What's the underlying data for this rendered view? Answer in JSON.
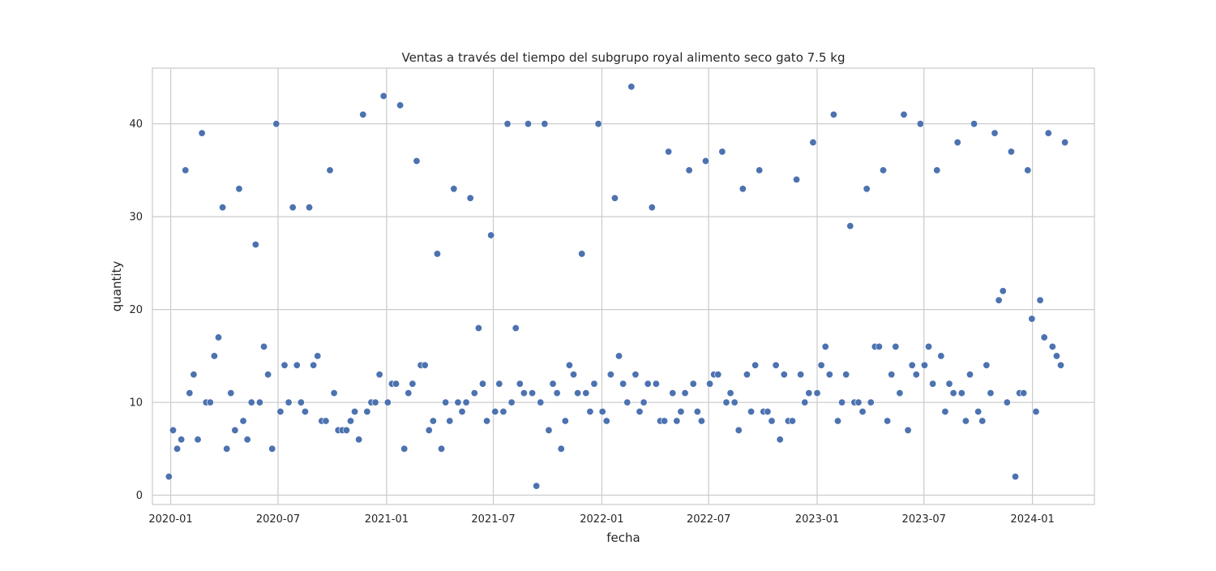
{
  "chart_data": {
    "type": "scatter",
    "title": "Ventas a través del tiempo del subgrupo royal alimento seco gato 7.5 kg",
    "xlabel": "fecha",
    "ylabel": "quantity",
    "xlim": [
      "2019-12-01",
      "2024-04-15"
    ],
    "ylim": [
      -1,
      46
    ],
    "x_ticks": [
      "2020-01",
      "2020-07",
      "2021-01",
      "2021-07",
      "2022-01",
      "2022-07",
      "2023-01",
      "2023-07",
      "2024-01"
    ],
    "y_ticks": [
      0,
      10,
      20,
      30,
      40
    ],
    "grid": true,
    "marker_color": "#4c72b0",
    "points": [
      [
        "2019-12-29",
        2
      ],
      [
        "2020-01-05",
        7
      ],
      [
        "2020-01-12",
        5
      ],
      [
        "2020-01-19",
        6
      ],
      [
        "2020-01-26",
        35
      ],
      [
        "2020-02-02",
        11
      ],
      [
        "2020-02-09",
        13
      ],
      [
        "2020-02-16",
        6
      ],
      [
        "2020-02-23",
        39
      ],
      [
        "2020-03-01",
        10
      ],
      [
        "2020-03-08",
        10
      ],
      [
        "2020-03-15",
        15
      ],
      [
        "2020-03-22",
        17
      ],
      [
        "2020-03-29",
        31
      ],
      [
        "2020-04-05",
        5
      ],
      [
        "2020-04-12",
        11
      ],
      [
        "2020-04-19",
        7
      ],
      [
        "2020-04-26",
        33
      ],
      [
        "2020-05-03",
        8
      ],
      [
        "2020-05-10",
        6
      ],
      [
        "2020-05-17",
        10
      ],
      [
        "2020-05-24",
        27
      ],
      [
        "2020-05-31",
        10
      ],
      [
        "2020-06-07",
        16
      ],
      [
        "2020-06-14",
        13
      ],
      [
        "2020-06-21",
        5
      ],
      [
        "2020-06-28",
        40
      ],
      [
        "2020-07-05",
        9
      ],
      [
        "2020-07-12",
        14
      ],
      [
        "2020-07-19",
        10
      ],
      [
        "2020-07-26",
        31
      ],
      [
        "2020-08-02",
        14
      ],
      [
        "2020-08-09",
        10
      ],
      [
        "2020-08-16",
        9
      ],
      [
        "2020-08-23",
        31
      ],
      [
        "2020-08-30",
        14
      ],
      [
        "2020-09-06",
        15
      ],
      [
        "2020-09-13",
        8
      ],
      [
        "2020-09-20",
        8
      ],
      [
        "2020-09-27",
        35
      ],
      [
        "2020-10-04",
        11
      ],
      [
        "2020-10-11",
        7
      ],
      [
        "2020-10-18",
        7
      ],
      [
        "2020-10-25",
        7
      ],
      [
        "2020-11-01",
        8
      ],
      [
        "2020-11-08",
        9
      ],
      [
        "2020-11-15",
        6
      ],
      [
        "2020-11-22",
        41
      ],
      [
        "2020-11-29",
        9
      ],
      [
        "2020-12-06",
        10
      ],
      [
        "2020-12-13",
        10
      ],
      [
        "2020-12-20",
        13
      ],
      [
        "2020-12-27",
        43
      ],
      [
        "2021-01-03",
        10
      ],
      [
        "2021-01-10",
        12
      ],
      [
        "2021-01-17",
        12
      ],
      [
        "2021-01-24",
        42
      ],
      [
        "2021-01-31",
        5
      ],
      [
        "2021-02-07",
        11
      ],
      [
        "2021-02-14",
        12
      ],
      [
        "2021-02-21",
        36
      ],
      [
        "2021-02-28",
        14
      ],
      [
        "2021-03-07",
        14
      ],
      [
        "2021-03-14",
        7
      ],
      [
        "2021-03-21",
        8
      ],
      [
        "2021-03-28",
        26
      ],
      [
        "2021-04-04",
        5
      ],
      [
        "2021-04-11",
        10
      ],
      [
        "2021-04-18",
        8
      ],
      [
        "2021-04-25",
        33
      ],
      [
        "2021-05-02",
        10
      ],
      [
        "2021-05-09",
        9
      ],
      [
        "2021-05-16",
        10
      ],
      [
        "2021-05-23",
        32
      ],
      [
        "2021-05-30",
        11
      ],
      [
        "2021-06-06",
        18
      ],
      [
        "2021-06-13",
        12
      ],
      [
        "2021-06-20",
        8
      ],
      [
        "2021-06-27",
        28
      ],
      [
        "2021-07-04",
        9
      ],
      [
        "2021-07-11",
        12
      ],
      [
        "2021-07-18",
        9
      ],
      [
        "2021-07-25",
        40
      ],
      [
        "2021-08-01",
        10
      ],
      [
        "2021-08-08",
        18
      ],
      [
        "2021-08-15",
        12
      ],
      [
        "2021-08-22",
        11
      ],
      [
        "2021-08-29",
        40
      ],
      [
        "2021-09-05",
        11
      ],
      [
        "2021-09-12",
        1
      ],
      [
        "2021-09-19",
        10
      ],
      [
        "2021-09-26",
        40
      ],
      [
        "2021-10-03",
        7
      ],
      [
        "2021-10-10",
        12
      ],
      [
        "2021-10-17",
        11
      ],
      [
        "2021-10-24",
        5
      ],
      [
        "2021-10-31",
        8
      ],
      [
        "2021-11-07",
        14
      ],
      [
        "2021-11-14",
        13
      ],
      [
        "2021-11-21",
        11
      ],
      [
        "2021-11-28",
        26
      ],
      [
        "2021-12-05",
        11
      ],
      [
        "2021-12-12",
        9
      ],
      [
        "2021-12-19",
        12
      ],
      [
        "2021-12-26",
        40
      ],
      [
        "2022-01-02",
        9
      ],
      [
        "2022-01-09",
        8
      ],
      [
        "2022-01-16",
        13
      ],
      [
        "2022-01-23",
        32
      ],
      [
        "2022-01-30",
        15
      ],
      [
        "2022-02-06",
        12
      ],
      [
        "2022-02-13",
        10
      ],
      [
        "2022-02-20",
        44
      ],
      [
        "2022-02-27",
        13
      ],
      [
        "2022-03-06",
        9
      ],
      [
        "2022-03-13",
        10
      ],
      [
        "2022-03-20",
        12
      ],
      [
        "2022-03-27",
        31
      ],
      [
        "2022-04-03",
        12
      ],
      [
        "2022-04-10",
        8
      ],
      [
        "2022-04-17",
        8
      ],
      [
        "2022-04-24",
        37
      ],
      [
        "2022-05-01",
        11
      ],
      [
        "2022-05-08",
        8
      ],
      [
        "2022-05-15",
        9
      ],
      [
        "2022-05-22",
        11
      ],
      [
        "2022-05-29",
        35
      ],
      [
        "2022-06-05",
        12
      ],
      [
        "2022-06-12",
        9
      ],
      [
        "2022-06-19",
        8
      ],
      [
        "2022-06-26",
        36
      ],
      [
        "2022-07-03",
        12
      ],
      [
        "2022-07-10",
        13
      ],
      [
        "2022-07-17",
        13
      ],
      [
        "2022-07-24",
        37
      ],
      [
        "2022-07-31",
        10
      ],
      [
        "2022-08-07",
        11
      ],
      [
        "2022-08-14",
        10
      ],
      [
        "2022-08-21",
        7
      ],
      [
        "2022-08-28",
        33
      ],
      [
        "2022-09-04",
        13
      ],
      [
        "2022-09-11",
        9
      ],
      [
        "2022-09-18",
        14
      ],
      [
        "2022-09-25",
        35
      ],
      [
        "2022-10-02",
        9
      ],
      [
        "2022-10-09",
        9
      ],
      [
        "2022-10-16",
        8
      ],
      [
        "2022-10-23",
        14
      ],
      [
        "2022-10-30",
        6
      ],
      [
        "2022-11-06",
        13
      ],
      [
        "2022-11-13",
        8
      ],
      [
        "2022-11-20",
        8
      ],
      [
        "2022-11-27",
        34
      ],
      [
        "2022-12-04",
        13
      ],
      [
        "2022-12-11",
        10
      ],
      [
        "2022-12-18",
        11
      ],
      [
        "2022-12-25",
        38
      ],
      [
        "2023-01-01",
        11
      ],
      [
        "2023-01-08",
        14
      ],
      [
        "2023-01-15",
        16
      ],
      [
        "2023-01-22",
        13
      ],
      [
        "2023-01-29",
        41
      ],
      [
        "2023-02-05",
        8
      ],
      [
        "2023-02-12",
        10
      ],
      [
        "2023-02-19",
        13
      ],
      [
        "2023-02-26",
        29
      ],
      [
        "2023-03-05",
        10
      ],
      [
        "2023-03-12",
        10
      ],
      [
        "2023-03-19",
        9
      ],
      [
        "2023-03-26",
        33
      ],
      [
        "2023-04-02",
        10
      ],
      [
        "2023-04-09",
        16
      ],
      [
        "2023-04-16",
        16
      ],
      [
        "2023-04-23",
        35
      ],
      [
        "2023-04-30",
        8
      ],
      [
        "2023-05-07",
        13
      ],
      [
        "2023-05-14",
        16
      ],
      [
        "2023-05-21",
        11
      ],
      [
        "2023-05-28",
        41
      ],
      [
        "2023-06-04",
        7
      ],
      [
        "2023-06-11",
        14
      ],
      [
        "2023-06-18",
        13
      ],
      [
        "2023-06-25",
        40
      ],
      [
        "2023-07-02",
        14
      ],
      [
        "2023-07-09",
        16
      ],
      [
        "2023-07-16",
        12
      ],
      [
        "2023-07-23",
        35
      ],
      [
        "2023-07-30",
        15
      ],
      [
        "2023-08-06",
        9
      ],
      [
        "2023-08-13",
        12
      ],
      [
        "2023-08-20",
        11
      ],
      [
        "2023-08-27",
        38
      ],
      [
        "2023-09-03",
        11
      ],
      [
        "2023-09-10",
        8
      ],
      [
        "2023-09-17",
        13
      ],
      [
        "2023-09-24",
        40
      ],
      [
        "2023-10-01",
        9
      ],
      [
        "2023-10-08",
        8
      ],
      [
        "2023-10-15",
        14
      ],
      [
        "2023-10-22",
        11
      ],
      [
        "2023-10-29",
        39
      ],
      [
        "2023-11-05",
        21
      ],
      [
        "2023-11-12",
        22
      ],
      [
        "2023-11-19",
        10
      ],
      [
        "2023-11-26",
        37
      ],
      [
        "2023-12-03",
        2
      ],
      [
        "2023-12-10",
        11
      ],
      [
        "2023-12-17",
        11
      ],
      [
        "2023-12-24",
        35
      ],
      [
        "2023-12-31",
        19
      ],
      [
        "2024-01-07",
        9
      ],
      [
        "2024-01-14",
        21
      ],
      [
        "2024-01-21",
        17
      ],
      [
        "2024-01-28",
        39
      ],
      [
        "2024-02-04",
        16
      ],
      [
        "2024-02-11",
        15
      ],
      [
        "2024-02-18",
        14
      ],
      [
        "2024-02-25",
        38
      ]
    ]
  }
}
